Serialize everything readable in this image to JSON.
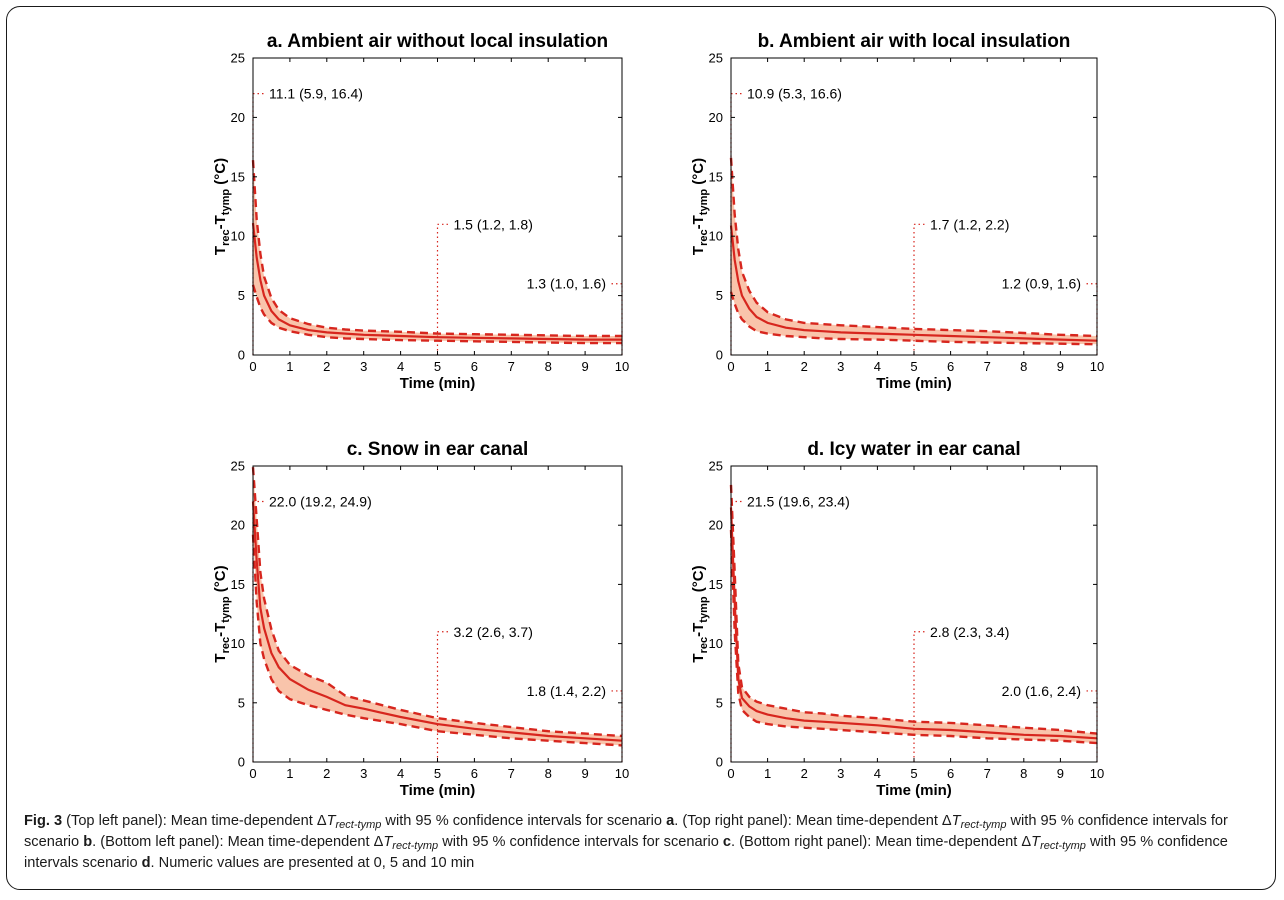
{
  "chart_data": [
    {
      "type": "line",
      "title": "a. Ambient air without local insulation",
      "xlabel": "Time (min)",
      "ylabel": "T_rec - T_tymp (°C)",
      "xlim": [
        0,
        10
      ],
      "ylim": [
        0,
        25
      ],
      "xticks": [
        0,
        1,
        2,
        3,
        4,
        5,
        6,
        7,
        8,
        9,
        10
      ],
      "yticks": [
        0,
        5,
        10,
        15,
        20,
        25
      ],
      "x": [
        0,
        0.1,
        0.2,
        0.3,
        0.5,
        0.7,
        1,
        1.5,
        2,
        2.5,
        3,
        4,
        5,
        6,
        7,
        8,
        9,
        10
      ],
      "series": [
        {
          "name": "mean",
          "values": [
            11.1,
            8.2,
            6.3,
            5.0,
            3.7,
            3.0,
            2.5,
            2.1,
            1.9,
            1.8,
            1.7,
            1.6,
            1.5,
            1.45,
            1.4,
            1.35,
            1.3,
            1.3
          ]
        },
        {
          "name": "lower 95% CI",
          "values": [
            5.9,
            4.9,
            4.0,
            3.4,
            2.7,
            2.3,
            2.0,
            1.7,
            1.5,
            1.4,
            1.35,
            1.25,
            1.2,
            1.15,
            1.1,
            1.05,
            1.0,
            1.0
          ]
        },
        {
          "name": "upper 95% CI",
          "values": [
            16.4,
            11.4,
            8.5,
            6.6,
            4.8,
            3.8,
            3.1,
            2.6,
            2.3,
            2.15,
            2.05,
            1.95,
            1.8,
            1.75,
            1.7,
            1.65,
            1.6,
            1.6
          ]
        }
      ],
      "annotations": [
        {
          "x": 0,
          "y": 22,
          "text": "11.1 (5.9, 16.4)"
        },
        {
          "x": 5,
          "y": 11,
          "text": "1.5 (1.2, 1.8)"
        },
        {
          "x": 10,
          "y": 6,
          "text": "1.3 (1.0, 1.6)"
        }
      ]
    },
    {
      "type": "line",
      "title": "b. Ambient air with local insulation",
      "xlabel": "Time (min)",
      "ylabel": "T_rec - T_tymp (°C)",
      "xlim": [
        0,
        10
      ],
      "ylim": [
        0,
        25
      ],
      "xticks": [
        0,
        1,
        2,
        3,
        4,
        5,
        6,
        7,
        8,
        9,
        10
      ],
      "yticks": [
        0,
        5,
        10,
        15,
        20,
        25
      ],
      "x": [
        0,
        0.1,
        0.2,
        0.3,
        0.5,
        0.7,
        1,
        1.5,
        2,
        2.5,
        3,
        4,
        5,
        6,
        7,
        8,
        9,
        10
      ],
      "series": [
        {
          "name": "mean",
          "values": [
            10.9,
            8.0,
            6.2,
            5.0,
            3.9,
            3.2,
            2.7,
            2.3,
            2.1,
            2.0,
            1.9,
            1.8,
            1.7,
            1.6,
            1.5,
            1.4,
            1.3,
            1.2
          ]
        },
        {
          "name": "lower 95% CI",
          "values": [
            5.3,
            4.3,
            3.5,
            3.0,
            2.4,
            2.0,
            1.8,
            1.6,
            1.5,
            1.4,
            1.35,
            1.3,
            1.2,
            1.1,
            1.05,
            1.0,
            0.95,
            0.9
          ]
        },
        {
          "name": "upper 95% CI",
          "values": [
            16.6,
            11.8,
            8.9,
            7.0,
            5.4,
            4.4,
            3.6,
            3.0,
            2.7,
            2.6,
            2.5,
            2.35,
            2.2,
            2.1,
            2.0,
            1.85,
            1.7,
            1.6
          ]
        }
      ],
      "annotations": [
        {
          "x": 0,
          "y": 22,
          "text": "10.9 (5.3, 16.6)"
        },
        {
          "x": 5,
          "y": 11,
          "text": "1.7 (1.2, 2.2)"
        },
        {
          "x": 10,
          "y": 6,
          "text": "1.2 (0.9, 1.6)"
        }
      ]
    },
    {
      "type": "line",
      "title": "c. Snow in ear canal",
      "xlabel": "Time (min)",
      "ylabel": "T_rec - T_tymp (°C)",
      "xlim": [
        0,
        10
      ],
      "ylim": [
        0,
        25
      ],
      "xticks": [
        0,
        1,
        2,
        3,
        4,
        5,
        6,
        7,
        8,
        9,
        10
      ],
      "yticks": [
        0,
        5,
        10,
        15,
        20,
        25
      ],
      "x": [
        0,
        0.1,
        0.2,
        0.3,
        0.5,
        0.7,
        1,
        1.5,
        2,
        2.5,
        3,
        4,
        5,
        6,
        7,
        8,
        9,
        10
      ],
      "series": [
        {
          "name": "mean",
          "values": [
            22.0,
            17.0,
            13.0,
            11.3,
            9.2,
            8.0,
            7.0,
            6.1,
            5.5,
            4.8,
            4.5,
            3.8,
            3.2,
            2.8,
            2.5,
            2.2,
            2.0,
            1.8
          ]
        },
        {
          "name": "lower 95% CI",
          "values": [
            19.2,
            13.5,
            10.0,
            8.7,
            7.0,
            6.0,
            5.3,
            4.8,
            4.4,
            4.0,
            3.7,
            3.2,
            2.6,
            2.3,
            2.0,
            1.8,
            1.6,
            1.4
          ]
        },
        {
          "name": "upper 95% CI",
          "values": [
            24.9,
            20.5,
            16.0,
            13.8,
            11.2,
            9.4,
            8.2,
            7.3,
            6.7,
            5.6,
            5.2,
            4.4,
            3.7,
            3.3,
            2.95,
            2.6,
            2.4,
            2.2
          ]
        }
      ],
      "annotations": [
        {
          "x": 0,
          "y": 22,
          "text": "22.0 (19.2, 24.9)"
        },
        {
          "x": 5,
          "y": 11,
          "text": "3.2 (2.6, 3.7)"
        },
        {
          "x": 10,
          "y": 6,
          "text": "1.8 (1.4, 2.2)"
        }
      ]
    },
    {
      "type": "line",
      "title": "d. Icy water in ear canal",
      "xlabel": "Time (min)",
      "ylabel": "T_rec - T_tymp (°C)",
      "xlim": [
        0,
        10
      ],
      "ylim": [
        0,
        25
      ],
      "xticks": [
        0,
        1,
        2,
        3,
        4,
        5,
        6,
        7,
        8,
        9,
        10
      ],
      "yticks": [
        0,
        5,
        10,
        15,
        20,
        25
      ],
      "x": [
        0,
        0.1,
        0.2,
        0.3,
        0.5,
        0.7,
        1,
        1.5,
        2,
        2.5,
        3,
        4,
        5,
        6,
        7,
        8,
        9,
        10
      ],
      "series": [
        {
          "name": "mean",
          "values": [
            21.5,
            13.5,
            7.0,
            5.4,
            4.7,
            4.3,
            4.0,
            3.7,
            3.5,
            3.4,
            3.3,
            3.1,
            2.8,
            2.7,
            2.5,
            2.3,
            2.2,
            2.0
          ]
        },
        {
          "name": "lower 95% CI",
          "values": [
            19.6,
            11.0,
            5.8,
            4.4,
            3.8,
            3.4,
            3.2,
            3.0,
            2.9,
            2.8,
            2.7,
            2.5,
            2.3,
            2.2,
            2.0,
            1.9,
            1.8,
            1.6
          ]
        },
        {
          "name": "upper 95% CI",
          "values": [
            23.4,
            16.0,
            8.3,
            6.3,
            5.5,
            5.1,
            4.8,
            4.5,
            4.2,
            4.1,
            3.9,
            3.7,
            3.4,
            3.3,
            3.1,
            2.9,
            2.7,
            2.4
          ]
        }
      ],
      "annotations": [
        {
          "x": 0,
          "y": 22,
          "text": "21.5 (19.6, 23.4)"
        },
        {
          "x": 5,
          "y": 11,
          "text": "2.8 (2.3, 3.4)"
        },
        {
          "x": 10,
          "y": 6,
          "text": "2.0 (1.6, 2.4)"
        }
      ]
    }
  ],
  "ylabel_parts": {
    "t1": "T",
    "s1": "rec",
    "mid": "-T",
    "s2": "tymp",
    "unit": "(°C)"
  },
  "colors": {
    "line": "#d7261e",
    "band": "#f9c4ab",
    "ref": "#d7261e",
    "zero": "#888888"
  },
  "caption": {
    "fig": "Fig. 3",
    "p1": " (Top left panel): Mean time-dependent Δ",
    "T": "T",
    "sub": "rect-tymp",
    "ci": " with 95 % confidence intervals for scenario ",
    "ci_short": " with 95 % confidence intervals scenario ",
    "a": "a",
    "p2": ". (Top right panel): Mean time-dependent Δ",
    "b": "b",
    "p3": ". (Bottom left panel): Mean time-dependent Δ",
    "c": "c",
    "p4": ". (Bottom right panel): Mean time-dependent Δ",
    "d": "d",
    "p5": ". Numeric values are presented at 0, 5 and 10 min"
  }
}
